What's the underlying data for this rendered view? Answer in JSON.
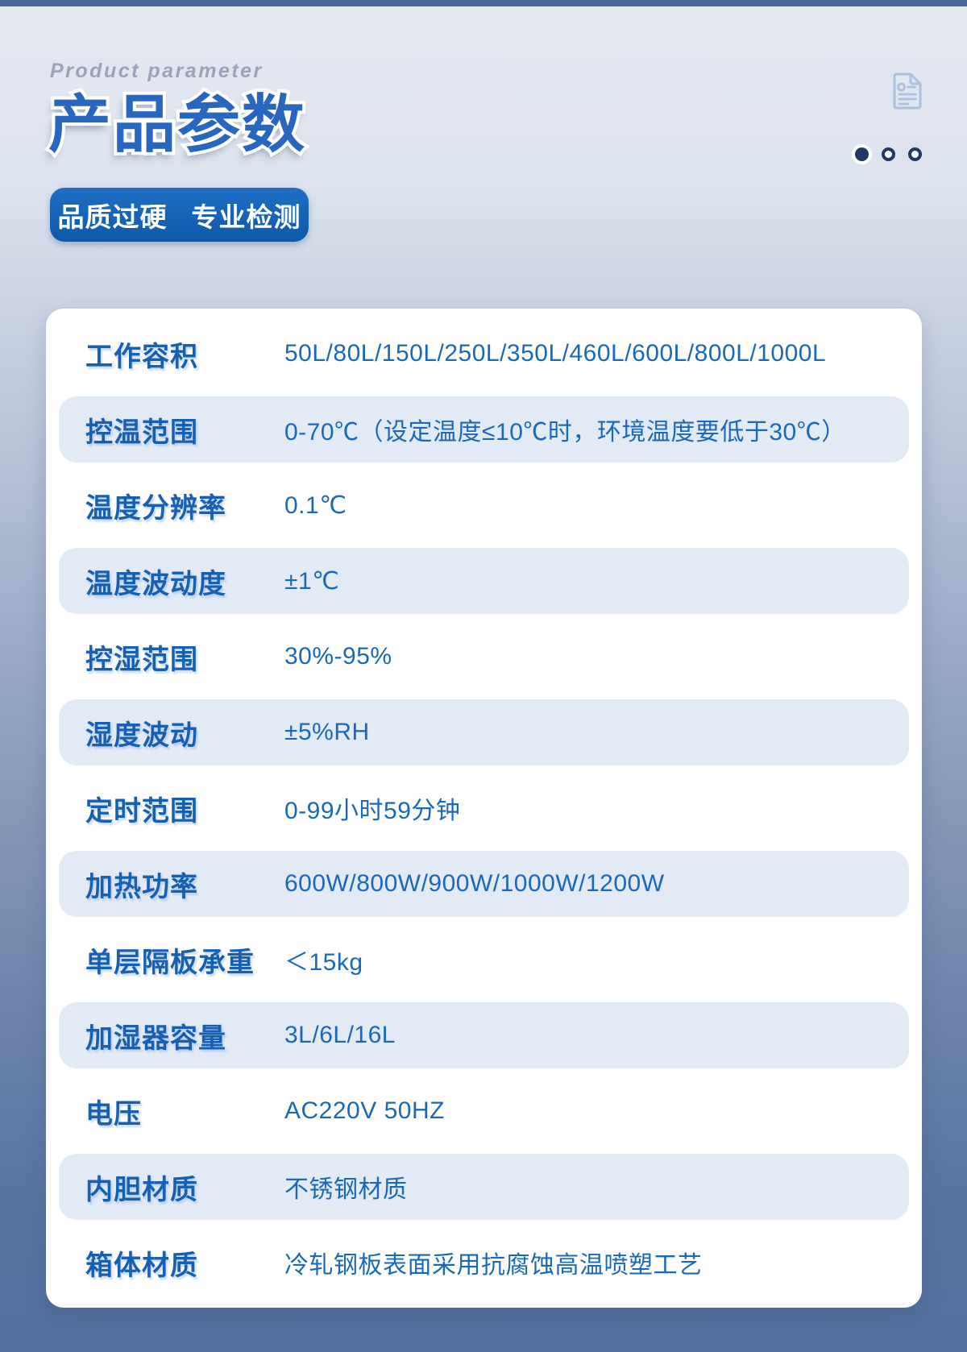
{
  "header": {
    "subtitle_en": "Product parameter",
    "title": "产品参数",
    "badge": {
      "label_1": "品质过硬",
      "label_2": "专业检测"
    }
  },
  "pagination": {
    "dot_count": 3,
    "active_index": 0
  },
  "icons": {
    "top_right": "document-icon"
  },
  "colors": {
    "top_band": "#4c699b",
    "title_blue": "#2767c0",
    "badge_blue_top": "#1e6fc4",
    "badge_blue_bottom": "#0f58a8",
    "label_blue": "#1560b2",
    "value_blue": "#1a68ba",
    "row_shade": "#e2eaf6",
    "dot_navy": "#21396a",
    "background_top": "#e4e8f1",
    "background_bottom": "#51709d"
  },
  "table": {
    "rows": [
      {
        "label": "工作容积",
        "value": "50L/80L/150L/250L/350L/460L/600L/800L/1000L"
      },
      {
        "label": "控温范围",
        "value": "0-70℃（设定温度≤10℃时，环境温度要低于30℃）"
      },
      {
        "label": "温度分辨率",
        "value": "0.1℃"
      },
      {
        "label": "温度波动度",
        "value": "±1℃"
      },
      {
        "label": "控湿范围",
        "value": "30%-95%"
      },
      {
        "label": "湿度波动",
        "value": "±5%RH"
      },
      {
        "label": "定时范围",
        "value": "0-99小时59分钟"
      },
      {
        "label": "加热功率",
        "value": "600W/800W/900W/1000W/1200W"
      },
      {
        "label": "单层隔板承重",
        "value": "＜15kg"
      },
      {
        "label": "加湿器容量",
        "value": "3L/6L/16L"
      },
      {
        "label": "电压",
        "value": "AC220V 50HZ"
      },
      {
        "label": "内胆材质",
        "value": "不锈钢材质"
      },
      {
        "label": "箱体材质",
        "value": "冷轧钢板表面采用抗腐蚀高温喷塑工艺"
      }
    ]
  }
}
